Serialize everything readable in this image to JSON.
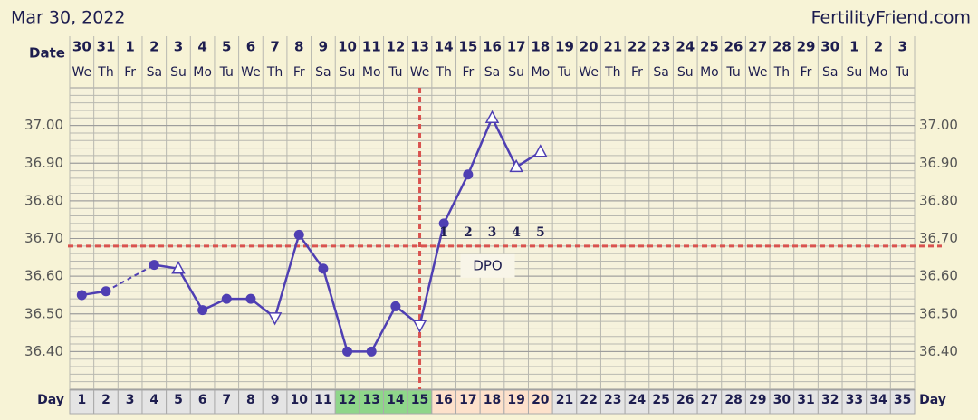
{
  "start_date": "Mar 30, 2022",
  "site": "FertilityFriend.com",
  "chart_data": {
    "type": "line",
    "row_labels": {
      "date": "Date",
      "day": "Day"
    },
    "x": [
      1,
      2,
      3,
      4,
      5,
      6,
      7,
      8,
      9,
      10,
      11,
      12,
      13,
      14,
      15,
      16,
      17,
      18,
      19,
      20,
      21,
      22,
      23,
      24,
      25,
      26,
      27,
      28,
      29,
      30,
      31,
      32,
      33,
      34,
      35
    ],
    "dates": [
      30,
      31,
      1,
      2,
      3,
      4,
      5,
      6,
      7,
      8,
      9,
      10,
      11,
      12,
      13,
      14,
      15,
      16,
      17,
      18,
      19,
      20,
      21,
      22,
      23,
      24,
      25,
      26,
      27,
      28,
      29,
      30,
      1,
      2,
      3
    ],
    "weekdays": [
      "We",
      "Th",
      "Fr",
      "Sa",
      "Su",
      "Mo",
      "Tu",
      "We",
      "Th",
      "Fr",
      "Sa",
      "Su",
      "Mo",
      "Tu",
      "We",
      "Th",
      "Fr",
      "Sa",
      "Su",
      "Mo",
      "Tu",
      "We",
      "Th",
      "Fr",
      "Sa",
      "Su",
      "Mo",
      "Tu",
      "We",
      "Th",
      "Fr",
      "Sa",
      "Su",
      "Mo",
      "Tu"
    ],
    "day_fills": [
      "#e4e4e4",
      "#e4e4e4",
      "#e4e4e4",
      "#e4e4e4",
      "#e4e4e4",
      "#e4e4e4",
      "#e4e4e4",
      "#e4e4e4",
      "#e4e4e4",
      "#e4e4e4",
      "#e4e4e4",
      "#8fd68a",
      "#8fd68a",
      "#8fd68a",
      "#8fd68a",
      "#fde1cb",
      "#fde1cb",
      "#fde1cb",
      "#fde1cb",
      "#fde1cb",
      "#e4e4e4",
      "#e4e4e4",
      "#e4e4e4",
      "#e4e4e4",
      "#e4e4e4",
      "#e4e4e4",
      "#e4e4e4",
      "#e4e4e4",
      "#e4e4e4",
      "#e4e4e4",
      "#e4e4e4",
      "#e4e4e4",
      "#e4e4e4",
      "#e4e4e4",
      "#e4e4e4"
    ],
    "series": [
      {
        "color": "#4f3fb3",
        "values": [
          36.55,
          36.56,
          null,
          36.63,
          36.62,
          36.51,
          36.54,
          36.54,
          36.49,
          36.71,
          36.62,
          36.4,
          36.4,
          36.52,
          36.47,
          36.74,
          36.87,
          37.02,
          36.89,
          36.93,
          null,
          null,
          null,
          null,
          null,
          null,
          null,
          null,
          null,
          null,
          null,
          null,
          null,
          null,
          null
        ],
        "markers": [
          "circle",
          "circle",
          null,
          "circle",
          "triangle",
          "circle",
          "circle",
          "circle",
          "triangle-down",
          "circle",
          "circle",
          "circle",
          "circle",
          "circle",
          "triangle-down",
          "circle",
          "circle",
          "triangle",
          "triangle",
          "triangle",
          null,
          null,
          null,
          null,
          null,
          null,
          null,
          null,
          null,
          null,
          null,
          null,
          null,
          null,
          null
        ]
      }
    ],
    "ylim": [
      36.3,
      37.1
    ],
    "yticks": [
      {
        "value": 36.4,
        "label": "36.40"
      },
      {
        "value": 36.5,
        "label": "36.50"
      },
      {
        "value": 36.6,
        "label": "36.60"
      },
      {
        "value": 36.7,
        "label": "36.70"
      },
      {
        "value": 36.8,
        "label": "36.80"
      },
      {
        "value": 36.9,
        "label": "36.90"
      },
      {
        "value": 37.0,
        "label": "37.00"
      }
    ],
    "minor_ystep": 0.02,
    "coverline": 36.68,
    "ovulation_day": 15,
    "line_color_markers": "#d9534f",
    "dpo": {
      "label": "DPO",
      "days": [
        16,
        17,
        18,
        19,
        20
      ],
      "values": [
        1,
        2,
        3,
        4,
        5
      ]
    }
  }
}
